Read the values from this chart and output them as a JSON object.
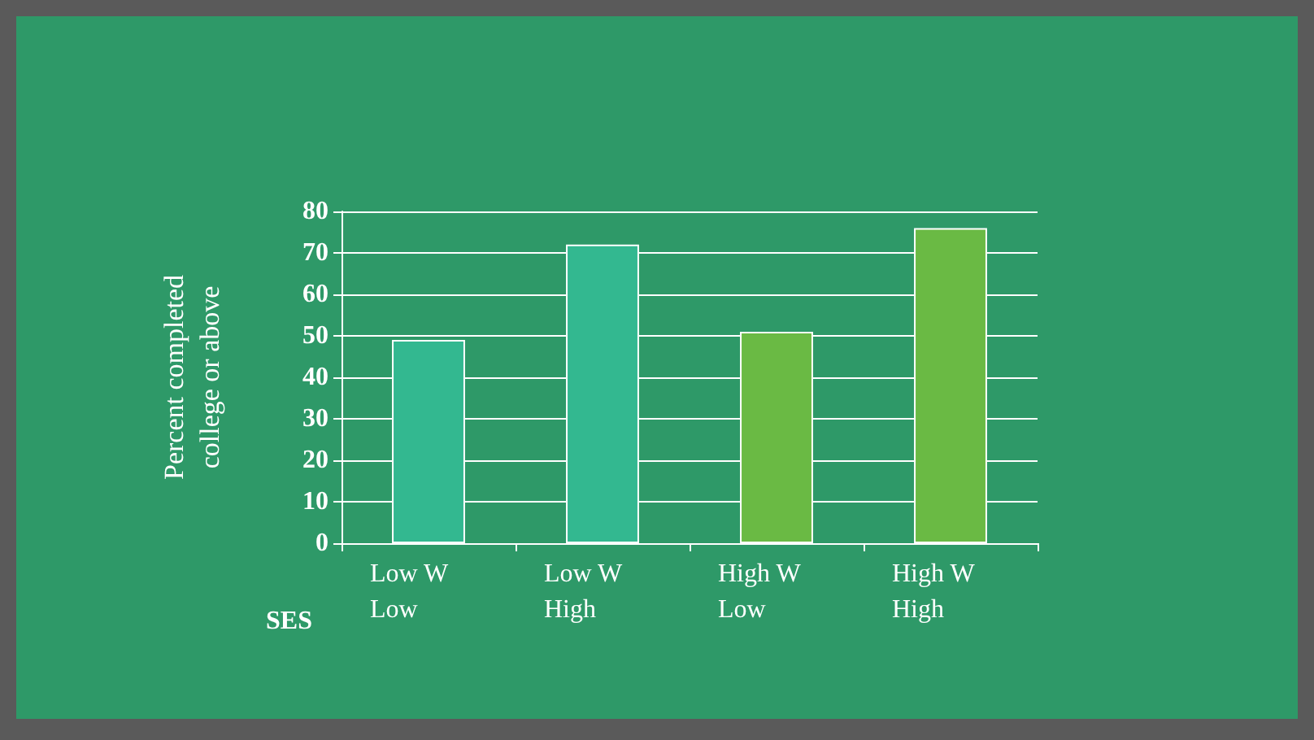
{
  "chart_data": {
    "type": "bar",
    "categories": [
      "Low W\nLow",
      "Low W\nHigh",
      "High W\nLow",
      "High W\nHigh"
    ],
    "values": [
      49,
      72,
      51,
      76
    ],
    "colors": [
      "#33b890",
      "#33b890",
      "#6aba44",
      "#6aba44"
    ],
    "xlabel": "SES",
    "ylabel": "Percent completed\ncollege or above",
    "ylim": [
      0,
      80
    ],
    "yticks": [
      0,
      10,
      20,
      30,
      40,
      50,
      60,
      70,
      80
    ],
    "grid": "y"
  }
}
